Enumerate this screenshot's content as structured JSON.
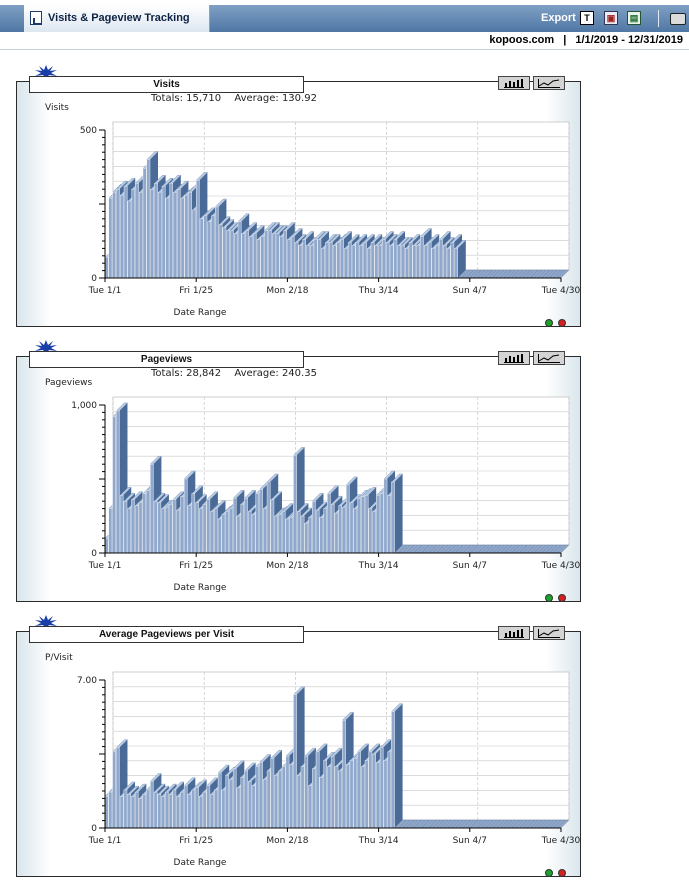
{
  "header": {
    "title": "Visits & Pageview Tracking",
    "export_label": "Export",
    "export_text_icon": "T",
    "site": "kopoos.com",
    "separator": "|",
    "date_range": "1/1/2019 - 12/31/2019",
    "icons": [
      "report-icon",
      "export-text-icon",
      "export-ppt-icon",
      "export-xls-icon",
      "print-icon"
    ]
  },
  "colors": {
    "bar_front": "#8fa8cc",
    "bar_dark": "#4a6a97",
    "bar_light": "#b9cce4",
    "title_bar": "#4f77a4",
    "grid": "#c8c8c8"
  },
  "panels": [
    {
      "label": "Visits",
      "totals_label": "Totals:",
      "totals_value": "15,710",
      "average_label": "Average:",
      "average_value": "130.92",
      "ylabel": "Visits",
      "xlabel": "Date Range"
    },
    {
      "label": "Pageviews",
      "totals_label": "Totals:",
      "totals_value": "28,842",
      "average_label": "Average:",
      "average_value": "240.35",
      "ylabel": "Pageviews",
      "xlabel": "Date Range"
    },
    {
      "label": "Average Pageviews per Visit",
      "ylabel": "P/Visit",
      "xlabel": "Date Range"
    }
  ],
  "chart_data": [
    {
      "type": "bar",
      "ylabel": "Visits",
      "xlabel": "Date Range",
      "ylim": [
        0,
        500
      ],
      "yticks": [
        "0",
        "500"
      ],
      "xticks": [
        "Tue 1/1",
        "Fri 1/25",
        "Mon 2/18",
        "Thu 3/14",
        "Sun 4/7",
        "Tue 4/30"
      ],
      "values": [
        70,
        270,
        290,
        300,
        280,
        310,
        260,
        300,
        320,
        290,
        370,
        400,
        300,
        320,
        290,
        310,
        270,
        320,
        290,
        300,
        270,
        280,
        290,
        230,
        330,
        200,
        210,
        190,
        210,
        240,
        180,
        170,
        160,
        160,
        150,
        190,
        150,
        160,
        140,
        150,
        130,
        140,
        160,
        160,
        150,
        150,
        140,
        160,
        130,
        140,
        120,
        110,
        130,
        110,
        110,
        130,
        130,
        100,
        120,
        120,
        110,
        120,
        130,
        100,
        120,
        110,
        120,
        110,
        120,
        100,
        120,
        110,
        110,
        130,
        120,
        110,
        130,
        110,
        110,
        100,
        120,
        110,
        110,
        140,
        110,
        120,
        100,
        110,
        130,
        110,
        100,
        120,
        100,
        0,
        0,
        0,
        0,
        0,
        0,
        0,
        0,
        0,
        0,
        0,
        0,
        0,
        0,
        0,
        0,
        0,
        0,
        0,
        0,
        0,
        0,
        0,
        0,
        0,
        0,
        0
      ]
    },
    {
      "type": "bar",
      "ylabel": "Pageviews",
      "xlabel": "Date Range",
      "ylim": [
        0,
        1000
      ],
      "yticks": [
        "0",
        "1,000"
      ],
      "xticks": [
        "Tue 1/1",
        "Fri 1/25",
        "Mon 2/18",
        "Thu 3/14",
        "Sun 4/7",
        "Tue 4/30"
      ],
      "values": [
        100,
        300,
        920,
        960,
        390,
        350,
        300,
        360,
        320,
        340,
        400,
        420,
        600,
        350,
        340,
        300,
        310,
        330,
        360,
        290,
        380,
        500,
        320,
        400,
        340,
        300,
        330,
        360,
        280,
        300,
        230,
        260,
        280,
        300,
        370,
        250,
        330,
        370,
        280,
        260,
        400,
        430,
        300,
        480,
        360,
        250,
        260,
        280,
        230,
        240,
        660,
        280,
        250,
        200,
        240,
        350,
        290,
        240,
        300,
        400,
        330,
        270,
        320,
        310,
        460,
        340,
        300,
        370,
        380,
        390,
        300,
        280,
        390,
        400,
        500,
        390,
        480,
        0,
        0,
        0,
        0,
        0,
        0,
        0,
        0,
        0,
        0,
        0,
        0,
        0,
        0,
        0,
        0,
        0,
        0,
        0,
        0,
        0,
        0,
        0,
        0,
        0,
        0,
        0,
        0,
        0,
        0,
        0,
        0,
        0,
        0,
        0,
        0,
        0,
        0,
        0,
        0,
        0,
        0,
        0,
        0
      ]
    },
    {
      "type": "bar",
      "ylabel": "P/Visit",
      "xlabel": "Date Range",
      "ylim": [
        0,
        7
      ],
      "yticks": [
        "0",
        "7.00"
      ],
      "xticks": [
        "Tue 1/1",
        "Fri 1/25",
        "Mon 2/18",
        "Thu 3/14",
        "Sun 4/7",
        "Tue 4/30"
      ],
      "values": [
        1.5,
        1.7,
        3.6,
        3.8,
        1.5,
        1.8,
        1.6,
        1.5,
        1.7,
        1.4,
        1.6,
        1.8,
        2.2,
        1.7,
        1.6,
        1.5,
        1.7,
        1.6,
        1.8,
        1.5,
        1.7,
        2.0,
        1.6,
        1.8,
        1.9,
        1.5,
        1.7,
        2.0,
        1.6,
        1.8,
        2.6,
        1.8,
        2.5,
        2.3,
        2.8,
        1.9,
        2.4,
        2.7,
        2.2,
        2.0,
        2.9,
        3.1,
        2.3,
        2.7,
        3.3,
        2.5,
        2.7,
        2.9,
        3.4,
        3.0,
        6.3,
        2.5,
        2.9,
        3.4,
        2.0,
        2.8,
        3.6,
        2.4,
        3.2,
        2.9,
        3.4,
        2.9,
        2.7,
        5.1,
        3.0,
        3.2,
        3.3,
        3.6,
        2.9,
        3.2,
        3.6,
        3.5,
        3.1,
        3.8,
        3.2,
        3.6,
        5.5,
        0,
        0,
        0,
        0,
        0,
        0,
        0,
        0,
        0,
        0,
        0,
        0,
        0,
        0,
        0,
        0,
        0,
        0,
        0,
        0,
        0,
        0,
        0,
        0,
        0,
        0,
        0,
        0,
        0,
        0,
        0,
        0,
        0,
        0,
        0,
        0,
        0,
        0,
        0,
        0,
        0,
        0,
        0,
        0
      ]
    }
  ]
}
